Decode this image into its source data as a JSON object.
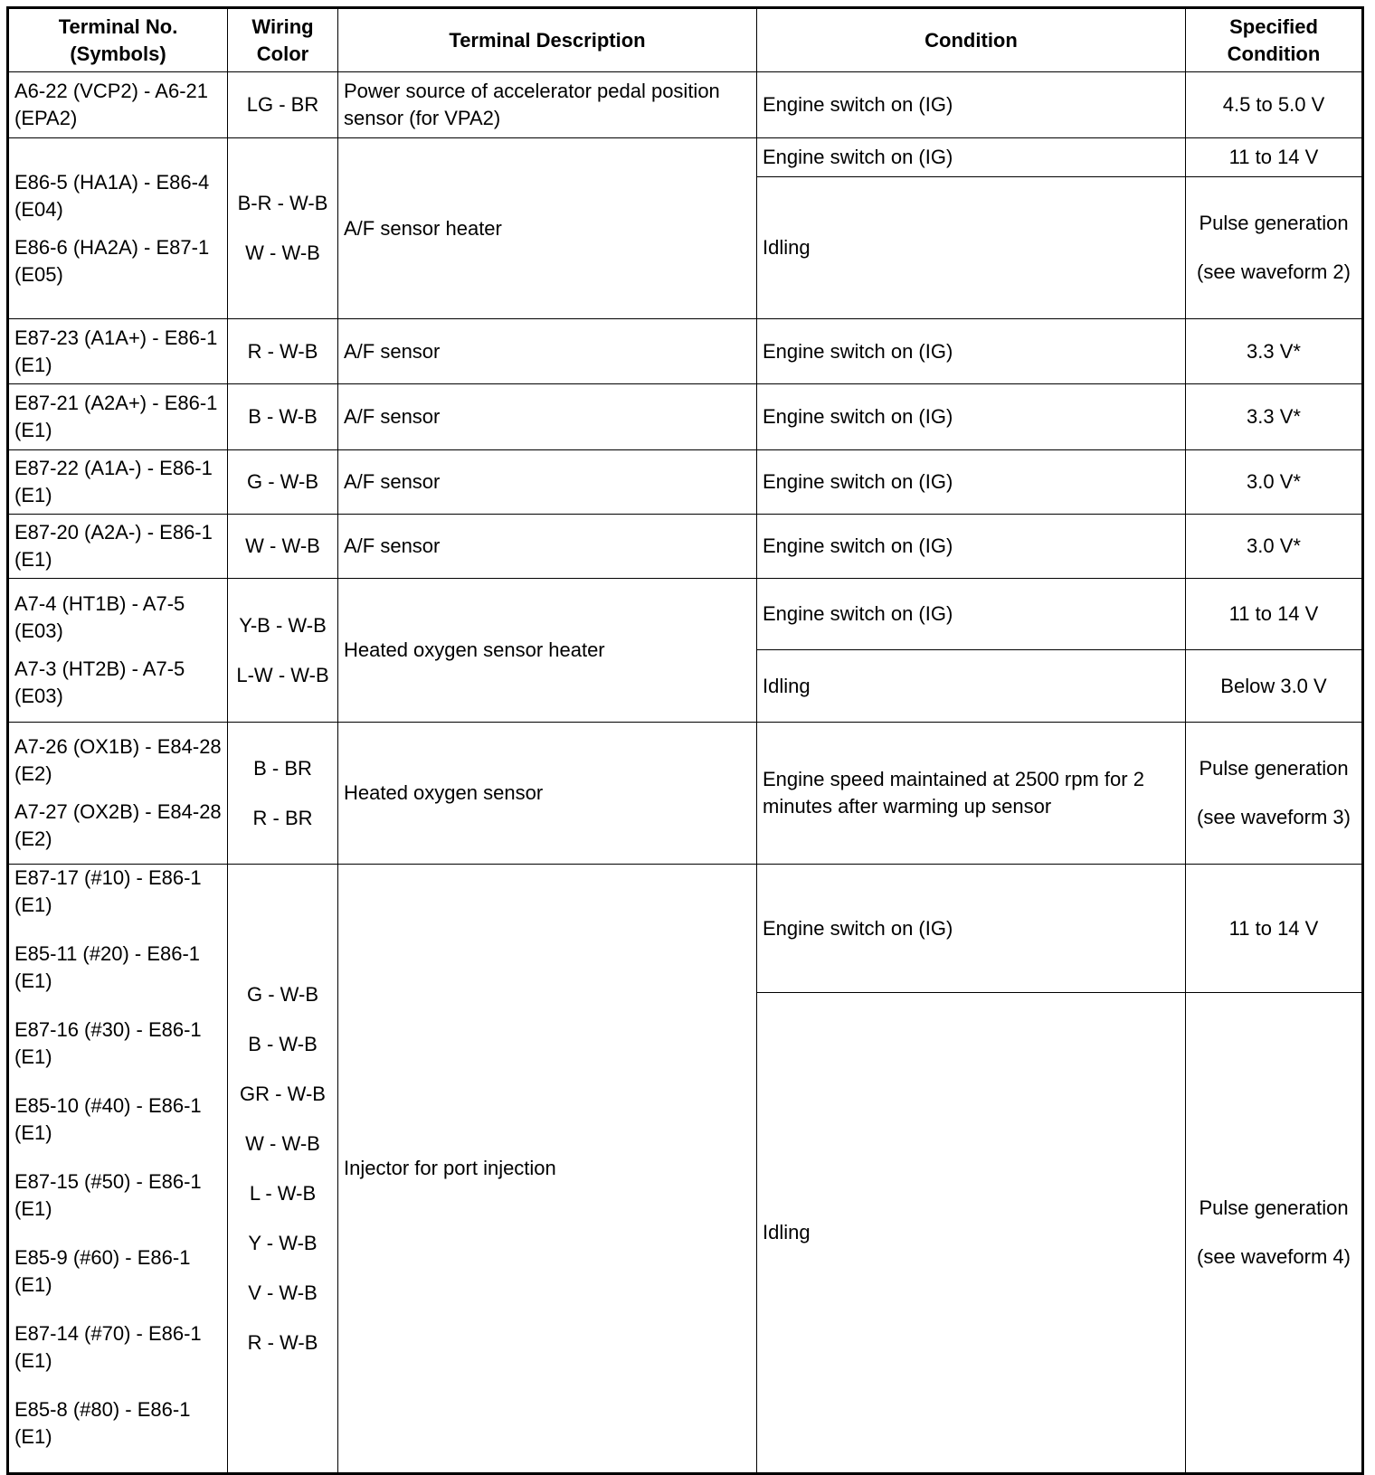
{
  "headers": [
    "Terminal No. (Symbols)",
    "Wiring Color",
    "Terminal Description",
    "Condition",
    "Specified Condition"
  ],
  "rows": [
    {
      "terminals": [
        "A6-22 (VCP2) - A6-21 (EPA2)"
      ],
      "wiring": [
        "LG - BR"
      ],
      "description": "Power source of accelerator pedal position sensor (for VPA2)",
      "conditions": [
        {
          "condition": "Engine switch on (IG)",
          "spec": "4.5 to 5.0 V"
        }
      ]
    },
    {
      "terminals": [
        "E86-5 (HA1A) - E86-4 (E04)",
        "E86-6 (HA2A) - E87-1 (E05)"
      ],
      "wiring": [
        "B-R - W-B",
        "W - W-B"
      ],
      "description": "A/F sensor heater",
      "conditions": [
        {
          "condition": "Engine switch on (IG)",
          "spec": "11 to 14 V"
        },
        {
          "condition": "Idling",
          "spec": "Pulse generation",
          "spec_note": "(see waveform 2)"
        }
      ]
    },
    {
      "terminals": [
        "E87-23 (A1A+) - E86-1 (E1)"
      ],
      "wiring": [
        "R - W-B"
      ],
      "description": "A/F sensor",
      "conditions": [
        {
          "condition": "Engine switch on (IG)",
          "spec": "3.3 V*"
        }
      ]
    },
    {
      "terminals": [
        "E87-21 (A2A+) - E86-1 (E1)"
      ],
      "wiring": [
        "B - W-B"
      ],
      "description": "A/F sensor",
      "conditions": [
        {
          "condition": "Engine switch on (IG)",
          "spec": "3.3 V*"
        }
      ]
    },
    {
      "terminals": [
        "E87-22 (A1A-) - E86-1 (E1)"
      ],
      "wiring": [
        "G - W-B"
      ],
      "description": "A/F sensor",
      "conditions": [
        {
          "condition": "Engine switch on (IG)",
          "spec": "3.0 V*"
        }
      ]
    },
    {
      "terminals": [
        "E87-20 (A2A-) - E86-1 (E1)"
      ],
      "wiring": [
        "W - W-B"
      ],
      "description": "A/F sensor",
      "conditions": [
        {
          "condition": "Engine switch on (IG)",
          "spec": "3.0 V*"
        }
      ]
    },
    {
      "terminals": [
        "A7-4 (HT1B) - A7-5 (E03)",
        "A7-3 (HT2B) - A7-5 (E03)"
      ],
      "wiring": [
        "Y-B - W-B",
        "L-W - W-B"
      ],
      "description": "Heated oxygen sensor heater",
      "conditions": [
        {
          "condition": "Engine switch on (IG)",
          "spec": "11 to 14 V"
        },
        {
          "condition": "Idling",
          "spec": "Below 3.0 V"
        }
      ]
    },
    {
      "terminals": [
        "A7-26 (OX1B) - E84-28 (E2)",
        "A7-27 (OX2B) - E84-28 (E2)"
      ],
      "wiring": [
        "B - BR",
        "R - BR"
      ],
      "description": "Heated oxygen sensor",
      "conditions": [
        {
          "condition": "Engine speed maintained at 2500 rpm for 2 minutes after warming up sensor",
          "spec": "Pulse generation",
          "spec_note": "(see waveform 3)"
        }
      ]
    },
    {
      "terminals": [
        "E87-17 (#10) - E86-1 (E1)",
        "E85-11 (#20) - E86-1 (E1)",
        "E87-16 (#30) - E86-1 (E1)",
        "E85-10 (#40) - E86-1 (E1)",
        "E87-15 (#50) - E86-1 (E1)",
        "E85-9 (#60) - E86-1 (E1)",
        "E87-14 (#70) - E86-1 (E1)",
        "E85-8 (#80) - E86-1 (E1)"
      ],
      "wiring": [
        "G - W-B",
        "B - W-B",
        "GR - W-B",
        "W - W-B",
        "L - W-B",
        "Y - W-B",
        "V - W-B",
        "R - W-B"
      ],
      "description": "Injector for port injection",
      "conditions": [
        {
          "condition": "Engine switch on (IG)",
          "spec": "11 to 14 V"
        },
        {
          "condition": "Idling",
          "spec": "Pulse generation",
          "spec_note": "(see waveform 4)"
        }
      ]
    }
  ]
}
